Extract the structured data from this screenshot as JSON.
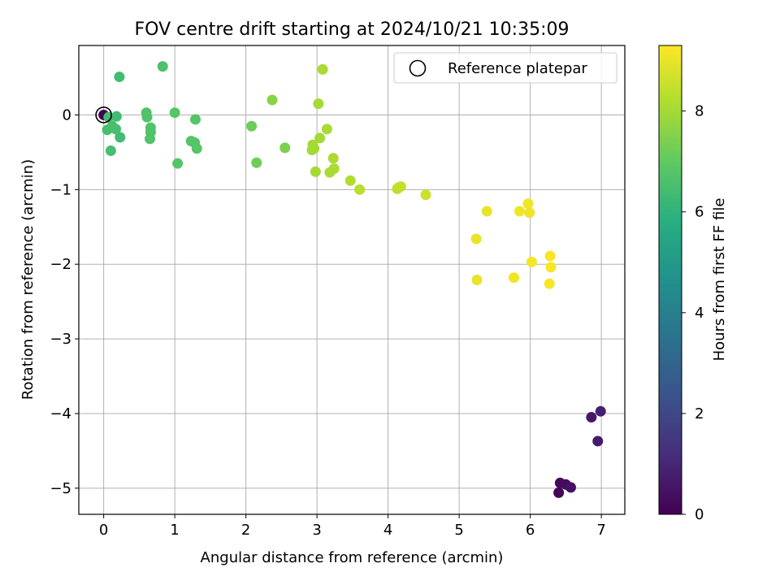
{
  "chart_data": {
    "type": "scatter",
    "title": "FOV centre drift starting at 2024/10/21 10:35:09",
    "xlabel": "Angular distance from reference (arcmin)",
    "ylabel": "Rotation from reference (arcmin)",
    "xlim": [
      -0.35,
      7.33
    ],
    "ylim": [
      -5.35,
      0.93
    ],
    "x_ticks": [
      0,
      1,
      2,
      3,
      4,
      5,
      6,
      7
    ],
    "y_ticks": [
      0,
      -1,
      -2,
      -3,
      -4,
      -5
    ],
    "grid": true,
    "legend": {
      "placement": "top-right",
      "entries": [
        "Reference platepar"
      ]
    },
    "reference_point": {
      "x": 0,
      "y": 0
    },
    "colorbar": {
      "label": "Hours from first FF file",
      "colormap": "viridis",
      "range": [
        0,
        9.3
      ],
      "ticks": [
        0,
        2,
        4,
        6,
        8
      ]
    },
    "series": [
      {
        "points": [
          {
            "x": 0.0,
            "y": 0.0,
            "h": 0.0
          },
          {
            "x": 6.4,
            "y": -5.06,
            "h": 0.1
          },
          {
            "x": 6.42,
            "y": -4.93,
            "h": 0.2
          },
          {
            "x": 6.5,
            "y": -4.95,
            "h": 0.3
          },
          {
            "x": 6.57,
            "y": -4.99,
            "h": 0.4
          },
          {
            "x": 6.86,
            "y": -4.05,
            "h": 0.6
          },
          {
            "x": 6.95,
            "y": -4.37,
            "h": 0.7
          },
          {
            "x": 6.99,
            "y": -3.97,
            "h": 0.8
          },
          {
            "x": 0.22,
            "y": 0.51,
            "h": 6.4
          },
          {
            "x": 0.83,
            "y": 0.65,
            "h": 6.6
          },
          {
            "x": 0.18,
            "y": -0.02,
            "h": 6.4
          },
          {
            "x": 0.23,
            "y": -0.3,
            "h": 6.4
          },
          {
            "x": 0.05,
            "y": -0.2,
            "h": 6.5
          },
          {
            "x": 0.1,
            "y": -0.48,
            "h": 6.5
          },
          {
            "x": 0.07,
            "y": -0.03,
            "h": 6.4
          },
          {
            "x": 0.12,
            "y": -0.15,
            "h": 6.5
          },
          {
            "x": 0.17,
            "y": -0.19,
            "h": 6.5
          },
          {
            "x": 0.6,
            "y": 0.03,
            "h": 6.7
          },
          {
            "x": 0.61,
            "y": -0.03,
            "h": 6.7
          },
          {
            "x": 0.66,
            "y": -0.17,
            "h": 6.7
          },
          {
            "x": 0.66,
            "y": -0.23,
            "h": 6.7
          },
          {
            "x": 0.65,
            "y": -0.32,
            "h": 6.7
          },
          {
            "x": 1.0,
            "y": 0.03,
            "h": 6.8
          },
          {
            "x": 1.04,
            "y": -0.65,
            "h": 6.8
          },
          {
            "x": 1.23,
            "y": -0.35,
            "h": 6.8
          },
          {
            "x": 1.29,
            "y": -0.06,
            "h": 6.8
          },
          {
            "x": 1.28,
            "y": -0.37,
            "h": 6.8
          },
          {
            "x": 1.31,
            "y": -0.45,
            "h": 6.8
          },
          {
            "x": 2.08,
            "y": -0.15,
            "h": 7.2
          },
          {
            "x": 2.15,
            "y": -0.64,
            "h": 7.2
          },
          {
            "x": 2.37,
            "y": 0.2,
            "h": 7.6
          },
          {
            "x": 2.55,
            "y": -0.44,
            "h": 7.4
          },
          {
            "x": 2.93,
            "y": -0.47,
            "h": 8.0
          },
          {
            "x": 2.94,
            "y": -0.4,
            "h": 8.0
          },
          {
            "x": 2.96,
            "y": -0.45,
            "h": 8.0
          },
          {
            "x": 2.98,
            "y": -0.76,
            "h": 8.0
          },
          {
            "x": 3.02,
            "y": 0.15,
            "h": 8.0
          },
          {
            "x": 3.04,
            "y": -0.31,
            "h": 8.0
          },
          {
            "x": 3.08,
            "y": 0.61,
            "h": 8.1
          },
          {
            "x": 3.14,
            "y": -0.19,
            "h": 8.1
          },
          {
            "x": 3.18,
            "y": -0.77,
            "h": 8.1
          },
          {
            "x": 3.23,
            "y": -0.58,
            "h": 8.1
          },
          {
            "x": 3.24,
            "y": -0.72,
            "h": 8.1
          },
          {
            "x": 3.47,
            "y": -0.88,
            "h": 8.2
          },
          {
            "x": 3.6,
            "y": -1.0,
            "h": 8.3
          },
          {
            "x": 4.13,
            "y": -0.99,
            "h": 8.4
          },
          {
            "x": 4.15,
            "y": -0.97,
            "h": 8.4
          },
          {
            "x": 4.18,
            "y": -0.96,
            "h": 8.5
          },
          {
            "x": 4.53,
            "y": -1.07,
            "h": 8.6
          },
          {
            "x": 5.24,
            "y": -1.66,
            "h": 9.0
          },
          {
            "x": 5.25,
            "y": -2.21,
            "h": 9.0
          },
          {
            "x": 5.39,
            "y": -1.29,
            "h": 9.0
          },
          {
            "x": 5.77,
            "y": -2.18,
            "h": 9.1
          },
          {
            "x": 5.85,
            "y": -1.29,
            "h": 9.1
          },
          {
            "x": 5.97,
            "y": -1.19,
            "h": 9.1
          },
          {
            "x": 5.99,
            "y": -1.31,
            "h": 9.1
          },
          {
            "x": 6.02,
            "y": -1.97,
            "h": 9.2
          },
          {
            "x": 6.27,
            "y": -2.26,
            "h": 9.2
          },
          {
            "x": 6.28,
            "y": -1.89,
            "h": 9.2
          },
          {
            "x": 6.29,
            "y": -2.04,
            "h": 9.2
          }
        ]
      }
    ]
  }
}
